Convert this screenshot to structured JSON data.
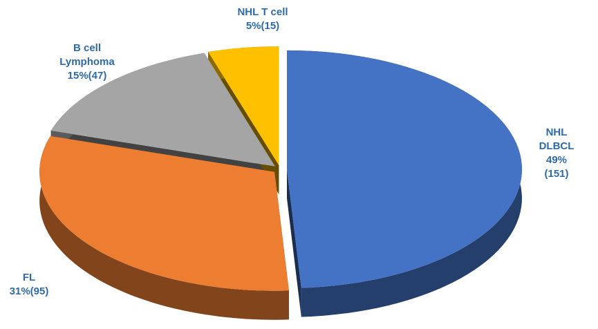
{
  "chart_data": {
    "type": "pie",
    "categories": [
      "NHL DLBCL",
      "FL",
      "B cell Lymphoma",
      "NHL T cell"
    ],
    "values": [
      151,
      95,
      47,
      15
    ],
    "value_labels": [
      "49%(151)",
      "31%(95)",
      "15%(47)",
      "5%(15)"
    ],
    "colors": [
      "#4472c4",
      "#ed7d31",
      "#a5a5a5",
      "#ffc000"
    ]
  }
}
